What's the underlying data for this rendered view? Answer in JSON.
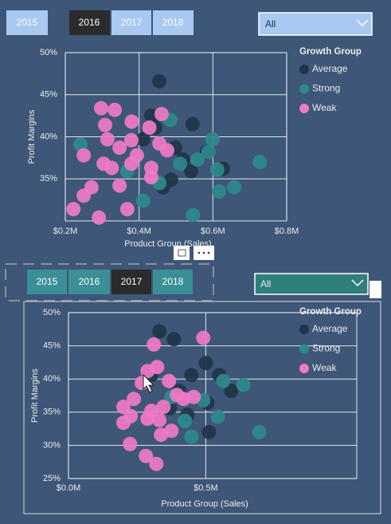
{
  "slicers": [
    {
      "years": [
        "2015",
        "2016",
        "2017",
        "2018"
      ],
      "dropdown": "All"
    },
    {
      "years": [
        "2015",
        "2016",
        "2017",
        "2018"
      ],
      "dropdown": "All"
    }
  ],
  "chart_data": [
    {
      "type": "scatter",
      "x_label": "Product Group (Sales)",
      "y_label": "Profit Margins",
      "legend_title": "Growth Group",
      "legend": "right",
      "grid": true,
      "xlim": [
        0.2,
        0.8
      ],
      "xticks": [
        {
          "value": 0.2,
          "label": "$0.2M"
        },
        {
          "value": 0.4,
          "label": "$0.4M"
        },
        {
          "value": 0.6,
          "label": "$0.6M"
        },
        {
          "value": 0.8,
          "label": "$0.8M"
        }
      ],
      "ylim": [
        30,
        50
      ],
      "yticks": [
        {
          "value": 35,
          "label": "35%"
        },
        {
          "value": 40,
          "label": "40%"
        },
        {
          "value": 45,
          "label": "45%"
        },
        {
          "value": 50,
          "label": "50%"
        }
      ],
      "series": [
        {
          "name": "Average",
          "color": "#1f3448",
          "x": [
            0.455,
            0.545,
            0.433,
            0.498,
            0.541,
            0.627,
            0.465,
            0.519,
            0.444,
            0.487,
            0.584,
            0.411
          ],
          "values": [
            46.6,
            41.5,
            42.5,
            38.7,
            35.9,
            36.2,
            34.0,
            37.3,
            41.1,
            34.9,
            38.2,
            39.7
          ]
        },
        {
          "name": "Strong",
          "color": "#2c8a8c",
          "x": [
            0.241,
            0.485,
            0.599,
            0.588,
            0.511,
            0.558,
            0.612,
            0.617,
            0.658,
            0.727,
            0.546,
            0.411,
            0.455,
            0.368
          ],
          "values": [
            39.1,
            42.0,
            39.7,
            38.2,
            36.8,
            37.3,
            36.1,
            33.5,
            34.0,
            37.0,
            30.7,
            32.4,
            34.5,
            35.9
          ]
        },
        {
          "name": "Weak",
          "color": "#f07ac8",
          "x": [
            0.297,
            0.334,
            0.308,
            0.38,
            0.428,
            0.461,
            0.314,
            0.347,
            0.25,
            0.304,
            0.326,
            0.379,
            0.433,
            0.476,
            0.455,
            0.271,
            0.347,
            0.25,
            0.222,
            0.291,
            0.368,
            0.433,
            0.394,
            0.379
          ],
          "values": [
            43.4,
            43.2,
            41.4,
            41.8,
            41.1,
            42.7,
            39.7,
            38.7,
            37.8,
            36.8,
            36.3,
            36.8,
            36.3,
            38.4,
            39.2,
            34.0,
            34.2,
            33.0,
            31.4,
            30.4,
            31.4,
            35.2,
            37.8,
            39.6
          ]
        }
      ]
    },
    {
      "type": "scatter",
      "x_label": "Product Group (Sales)",
      "y_label": "Profit Margins",
      "legend_title": "Growth Group",
      "legend": "right",
      "grid": true,
      "xlim": [
        0,
        1.05
      ],
      "xticks": [
        {
          "value": 0,
          "label": "$0.0M"
        },
        {
          "value": 0.5,
          "label": "$0.5M"
        }
      ],
      "ylim": [
        25,
        50
      ],
      "yticks": [
        {
          "value": 25,
          "label": "25%"
        },
        {
          "value": 30,
          "label": "30%"
        },
        {
          "value": 35,
          "label": "35%"
        },
        {
          "value": 40,
          "label": "40%"
        },
        {
          "value": 45,
          "label": "45%"
        },
        {
          "value": 50,
          "label": "50%"
        }
      ],
      "series": [
        {
          "name": "Average",
          "color": "#1f3448",
          "x": [
            0.331,
            0.384,
            0.448,
            0.5,
            0.404,
            0.506,
            0.593,
            0.512,
            0.433,
            0.302,
            0.369,
            0.549
          ],
          "values": [
            47.2,
            46.0,
            40.6,
            42.4,
            38.2,
            36.4,
            38.2,
            32.0,
            34.6,
            40.6,
            35.6,
            40.6
          ]
        },
        {
          "name": "Strong",
          "color": "#2c8a8c",
          "x": [
            0.564,
            0.637,
            0.491,
            0.544,
            0.424,
            0.375,
            0.695,
            0.448
          ],
          "values": [
            39.7,
            39.1,
            36.8,
            34.3,
            33.7,
            37.3,
            32.0,
            31.3
          ]
        },
        {
          "name": "Weak",
          "color": "#f07ac8",
          "x": [
            0.311,
            0.491,
            0.288,
            0.323,
            0.267,
            0.366,
            0.238,
            0.2,
            0.227,
            0.302,
            0.346,
            0.419,
            0.331,
            0.288,
            0.375,
            0.337,
            0.224,
            0.282,
            0.32,
            0.2,
            0.395,
            0.456
          ],
          "values": [
            45.2,
            46.2,
            41.2,
            41.8,
            39.4,
            39.7,
            37.0,
            35.8,
            34.4,
            35.2,
            35.8,
            37.0,
            33.8,
            34.0,
            32.2,
            31.6,
            30.2,
            28.4,
            27.2,
            33.4,
            37.6,
            37.3
          ]
        }
      ]
    }
  ]
}
